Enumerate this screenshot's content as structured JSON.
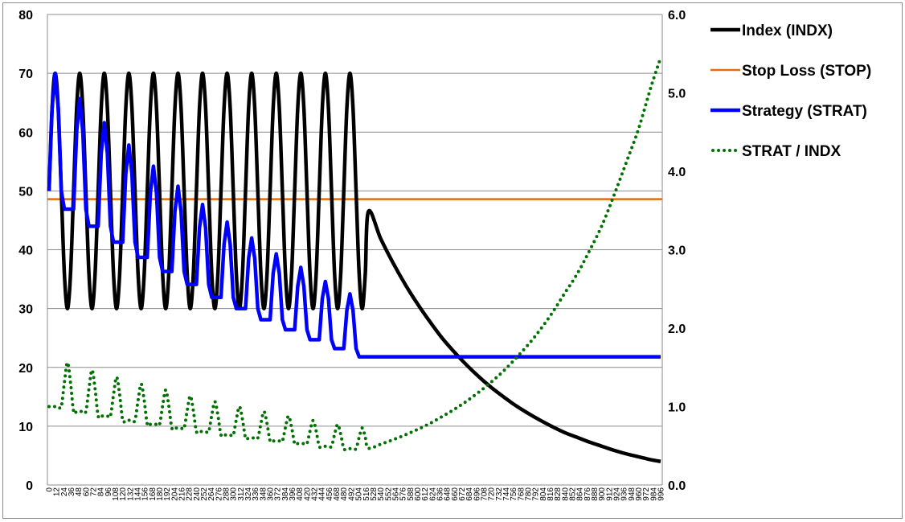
{
  "chart_data": {
    "type": "line",
    "title": "",
    "xlabel": "",
    "ylabel": "",
    "y_left_range": [
      0,
      80
    ],
    "y_left_ticks": [
      "0",
      "10",
      "20",
      "30",
      "40",
      "50",
      "60",
      "70",
      "80"
    ],
    "y_right_range": [
      0,
      6
    ],
    "y_right_ticks": [
      "0.0",
      "1.0",
      "2.0",
      "3.0",
      "4.0",
      "5.0",
      "6.0"
    ],
    "x_range": [
      0,
      996
    ],
    "x_tick_labels": [
      "0",
      "12",
      "24",
      "36",
      "48",
      "60",
      "72",
      "84",
      "96",
      "108",
      "120",
      "132",
      "144",
      "156",
      "168",
      "180",
      "192",
      "204",
      "216",
      "228",
      "240",
      "252",
      "264",
      "276",
      "288",
      "300",
      "312",
      "324",
      "336",
      "348",
      "360",
      "372",
      "384",
      "396",
      "408",
      "420",
      "432",
      "444",
      "456",
      "468",
      "480",
      "492",
      "504",
      "516",
      "528",
      "540",
      "552",
      "564",
      "576",
      "588",
      "600",
      "612",
      "624",
      "636",
      "648",
      "660",
      "672",
      "684",
      "696",
      "708",
      "720",
      "732",
      "744",
      "756",
      "768",
      "780",
      "792",
      "804",
      "816",
      "828",
      "840",
      "852",
      "864",
      "876",
      "888",
      "900",
      "912",
      "924",
      "936",
      "948",
      "960",
      "972",
      "984",
      "996"
    ],
    "grid": "horizontal",
    "legend_position": "right",
    "x": [
      0,
      5,
      10,
      15,
      20,
      25,
      30,
      35,
      40,
      45,
      50,
      55,
      60,
      65,
      70,
      75,
      80,
      85,
      90,
      95,
      100,
      105,
      110,
      115,
      120,
      125,
      130,
      135,
      140,
      145,
      150,
      155,
      160,
      165,
      170,
      175,
      180,
      185,
      190,
      195,
      200,
      205,
      210,
      215,
      220,
      225,
      230,
      235,
      240,
      245,
      250,
      255,
      260,
      265,
      270,
      275,
      280,
      285,
      290,
      295,
      300,
      305,
      310,
      315,
      320,
      325,
      330,
      335,
      340,
      345,
      350,
      355,
      360,
      365,
      370,
      375,
      380,
      385,
      390,
      395,
      400,
      405,
      410,
      415,
      420,
      425,
      430,
      435,
      440,
      445,
      450,
      455,
      460,
      465,
      470,
      475,
      480,
      485,
      490,
      495,
      500,
      505,
      510,
      515,
      520,
      540,
      560,
      580,
      600,
      620,
      640,
      660,
      680,
      700,
      720,
      740,
      760,
      780,
      800,
      820,
      840,
      860,
      880,
      900,
      920,
      940,
      960,
      980,
      996
    ],
    "series": [
      {
        "name": "Index (INDX)",
        "axis": "left",
        "color": "#000000",
        "style": "solid",
        "values": [
          50,
          64.1,
          70,
          64.1,
          50,
          35.9,
          30,
          35.9,
          50,
          64.1,
          70,
          64.1,
          50,
          35.9,
          30,
          35.9,
          50,
          64.1,
          70,
          64.1,
          50,
          35.9,
          30,
          35.9,
          50,
          64.1,
          70,
          64.1,
          50,
          35.9,
          30,
          35.9,
          50,
          64.1,
          70,
          64.1,
          50,
          35.9,
          30,
          35.9,
          50,
          64.1,
          70,
          64.1,
          50,
          35.9,
          30,
          35.9,
          50,
          64.1,
          70,
          64.1,
          50,
          35.9,
          30,
          35.9,
          50,
          64.1,
          70,
          64.1,
          50,
          35.9,
          30,
          35.9,
          50,
          64.1,
          70,
          64.1,
          50,
          35.9,
          30,
          35.9,
          50,
          64.1,
          70,
          64.1,
          50,
          35.9,
          30,
          35.9,
          50,
          64.1,
          70,
          64.1,
          50,
          35.9,
          30,
          35.9,
          50,
          64.1,
          70,
          64.1,
          50,
          35.9,
          30,
          35.9,
          50,
          64.1,
          70,
          64.1,
          50,
          35.9,
          30,
          35.9,
          46.5,
          41.9,
          37.8,
          34.1,
          30.8,
          27.8,
          25.0,
          22.6,
          20.4,
          18.4,
          16.6,
          15.0,
          13.5,
          12.2,
          11.0,
          9.9,
          8.9,
          8.1,
          7.3,
          6.6,
          5.9,
          5.3,
          4.8,
          4.3,
          4.0
        ]
      },
      {
        "name": "Stop Loss (STOP)",
        "axis": "left",
        "color": "#E46C0A",
        "style": "solid",
        "constant": 48.6
      },
      {
        "name": "Strategy (STRAT)",
        "axis": "left",
        "color": "#0000FF",
        "style": "solid",
        "values": [
          50,
          64.1,
          70,
          64.1,
          50,
          46.9,
          46.9,
          46.9,
          46.9,
          60.1,
          65.7,
          60.1,
          46.9,
          44.0,
          44.0,
          44.0,
          44.0,
          56.4,
          61.6,
          56.4,
          44.0,
          41.3,
          41.3,
          41.3,
          41.3,
          52.9,
          57.8,
          52.9,
          41.3,
          38.7,
          38.7,
          38.7,
          38.7,
          49.6,
          54.2,
          49.6,
          38.7,
          36.3,
          36.3,
          36.3,
          36.3,
          46.5,
          50.8,
          46.5,
          36.3,
          34.1,
          34.1,
          34.1,
          34.1,
          43.7,
          47.7,
          43.7,
          34.1,
          31.9,
          31.9,
          31.9,
          31.9,
          40.9,
          44.7,
          40.9,
          31.9,
          30.0,
          30.0,
          30.0,
          30.0,
          38.5,
          42.0,
          38.5,
          30.0,
          28.1,
          28.1,
          28.1,
          28.1,
          36.0,
          39.3,
          36.0,
          28.1,
          26.4,
          26.4,
          26.4,
          26.4,
          33.8,
          37.0,
          33.8,
          26.4,
          24.7,
          24.7,
          24.7,
          24.7,
          31.7,
          34.6,
          31.7,
          24.7,
          23.2,
          23.2,
          23.2,
          23.2,
          29.7,
          32.5,
          29.7,
          23.2,
          21.8,
          21.8,
          21.8,
          21.8,
          21.8,
          21.8,
          21.8,
          21.8,
          21.8,
          21.8,
          21.8,
          21.8,
          21.8,
          21.8,
          21.8,
          21.8,
          21.8,
          21.8,
          21.8,
          21.8,
          21.8,
          21.8,
          21.8,
          21.8,
          21.8,
          21.8,
          21.8,
          21.8
        ]
      },
      {
        "name": "STRAT / INDX",
        "axis": "right",
        "color": "#007000",
        "style": "dotted",
        "values": [
          1,
          1,
          1,
          1,
          1,
          1.306,
          1.563,
          1.306,
          0.938,
          0.938,
          0.938,
          0.938,
          0.938,
          1.226,
          1.467,
          1.226,
          0.88,
          0.88,
          0.88,
          0.88,
          0.88,
          1.15,
          1.377,
          1.15,
          0.826,
          0.826,
          0.826,
          0.826,
          0.826,
          1.078,
          1.29,
          1.078,
          0.774,
          0.774,
          0.774,
          0.774,
          0.774,
          1.011,
          1.21,
          1.011,
          0.726,
          0.726,
          0.726,
          0.726,
          0.726,
          0.95,
          1.137,
          0.95,
          0.682,
          0.682,
          0.682,
          0.682,
          0.682,
          0.889,
          1.063,
          0.889,
          0.638,
          0.638,
          0.638,
          0.638,
          0.638,
          0.836,
          1.0,
          0.836,
          0.6,
          0.6,
          0.6,
          0.6,
          0.6,
          0.783,
          0.937,
          0.783,
          0.562,
          0.562,
          0.562,
          0.562,
          0.562,
          0.735,
          0.88,
          0.735,
          0.528,
          0.528,
          0.528,
          0.528,
          0.528,
          0.688,
          0.823,
          0.688,
          0.494,
          0.494,
          0.494,
          0.494,
          0.494,
          0.646,
          0.773,
          0.646,
          0.464,
          0.464,
          0.464,
          0.464,
          0.464,
          0.607,
          0.727,
          0.607,
          0.469,
          0.52,
          0.577,
          0.639,
          0.708,
          0.784,
          0.872,
          0.965,
          1.069,
          1.185,
          1.313,
          1.453,
          1.615,
          1.787,
          1.982,
          2.202,
          2.449,
          2.691,
          2.986,
          3.303,
          3.695,
          4.113,
          4.542,
          5.07,
          5.45
        ]
      }
    ]
  }
}
